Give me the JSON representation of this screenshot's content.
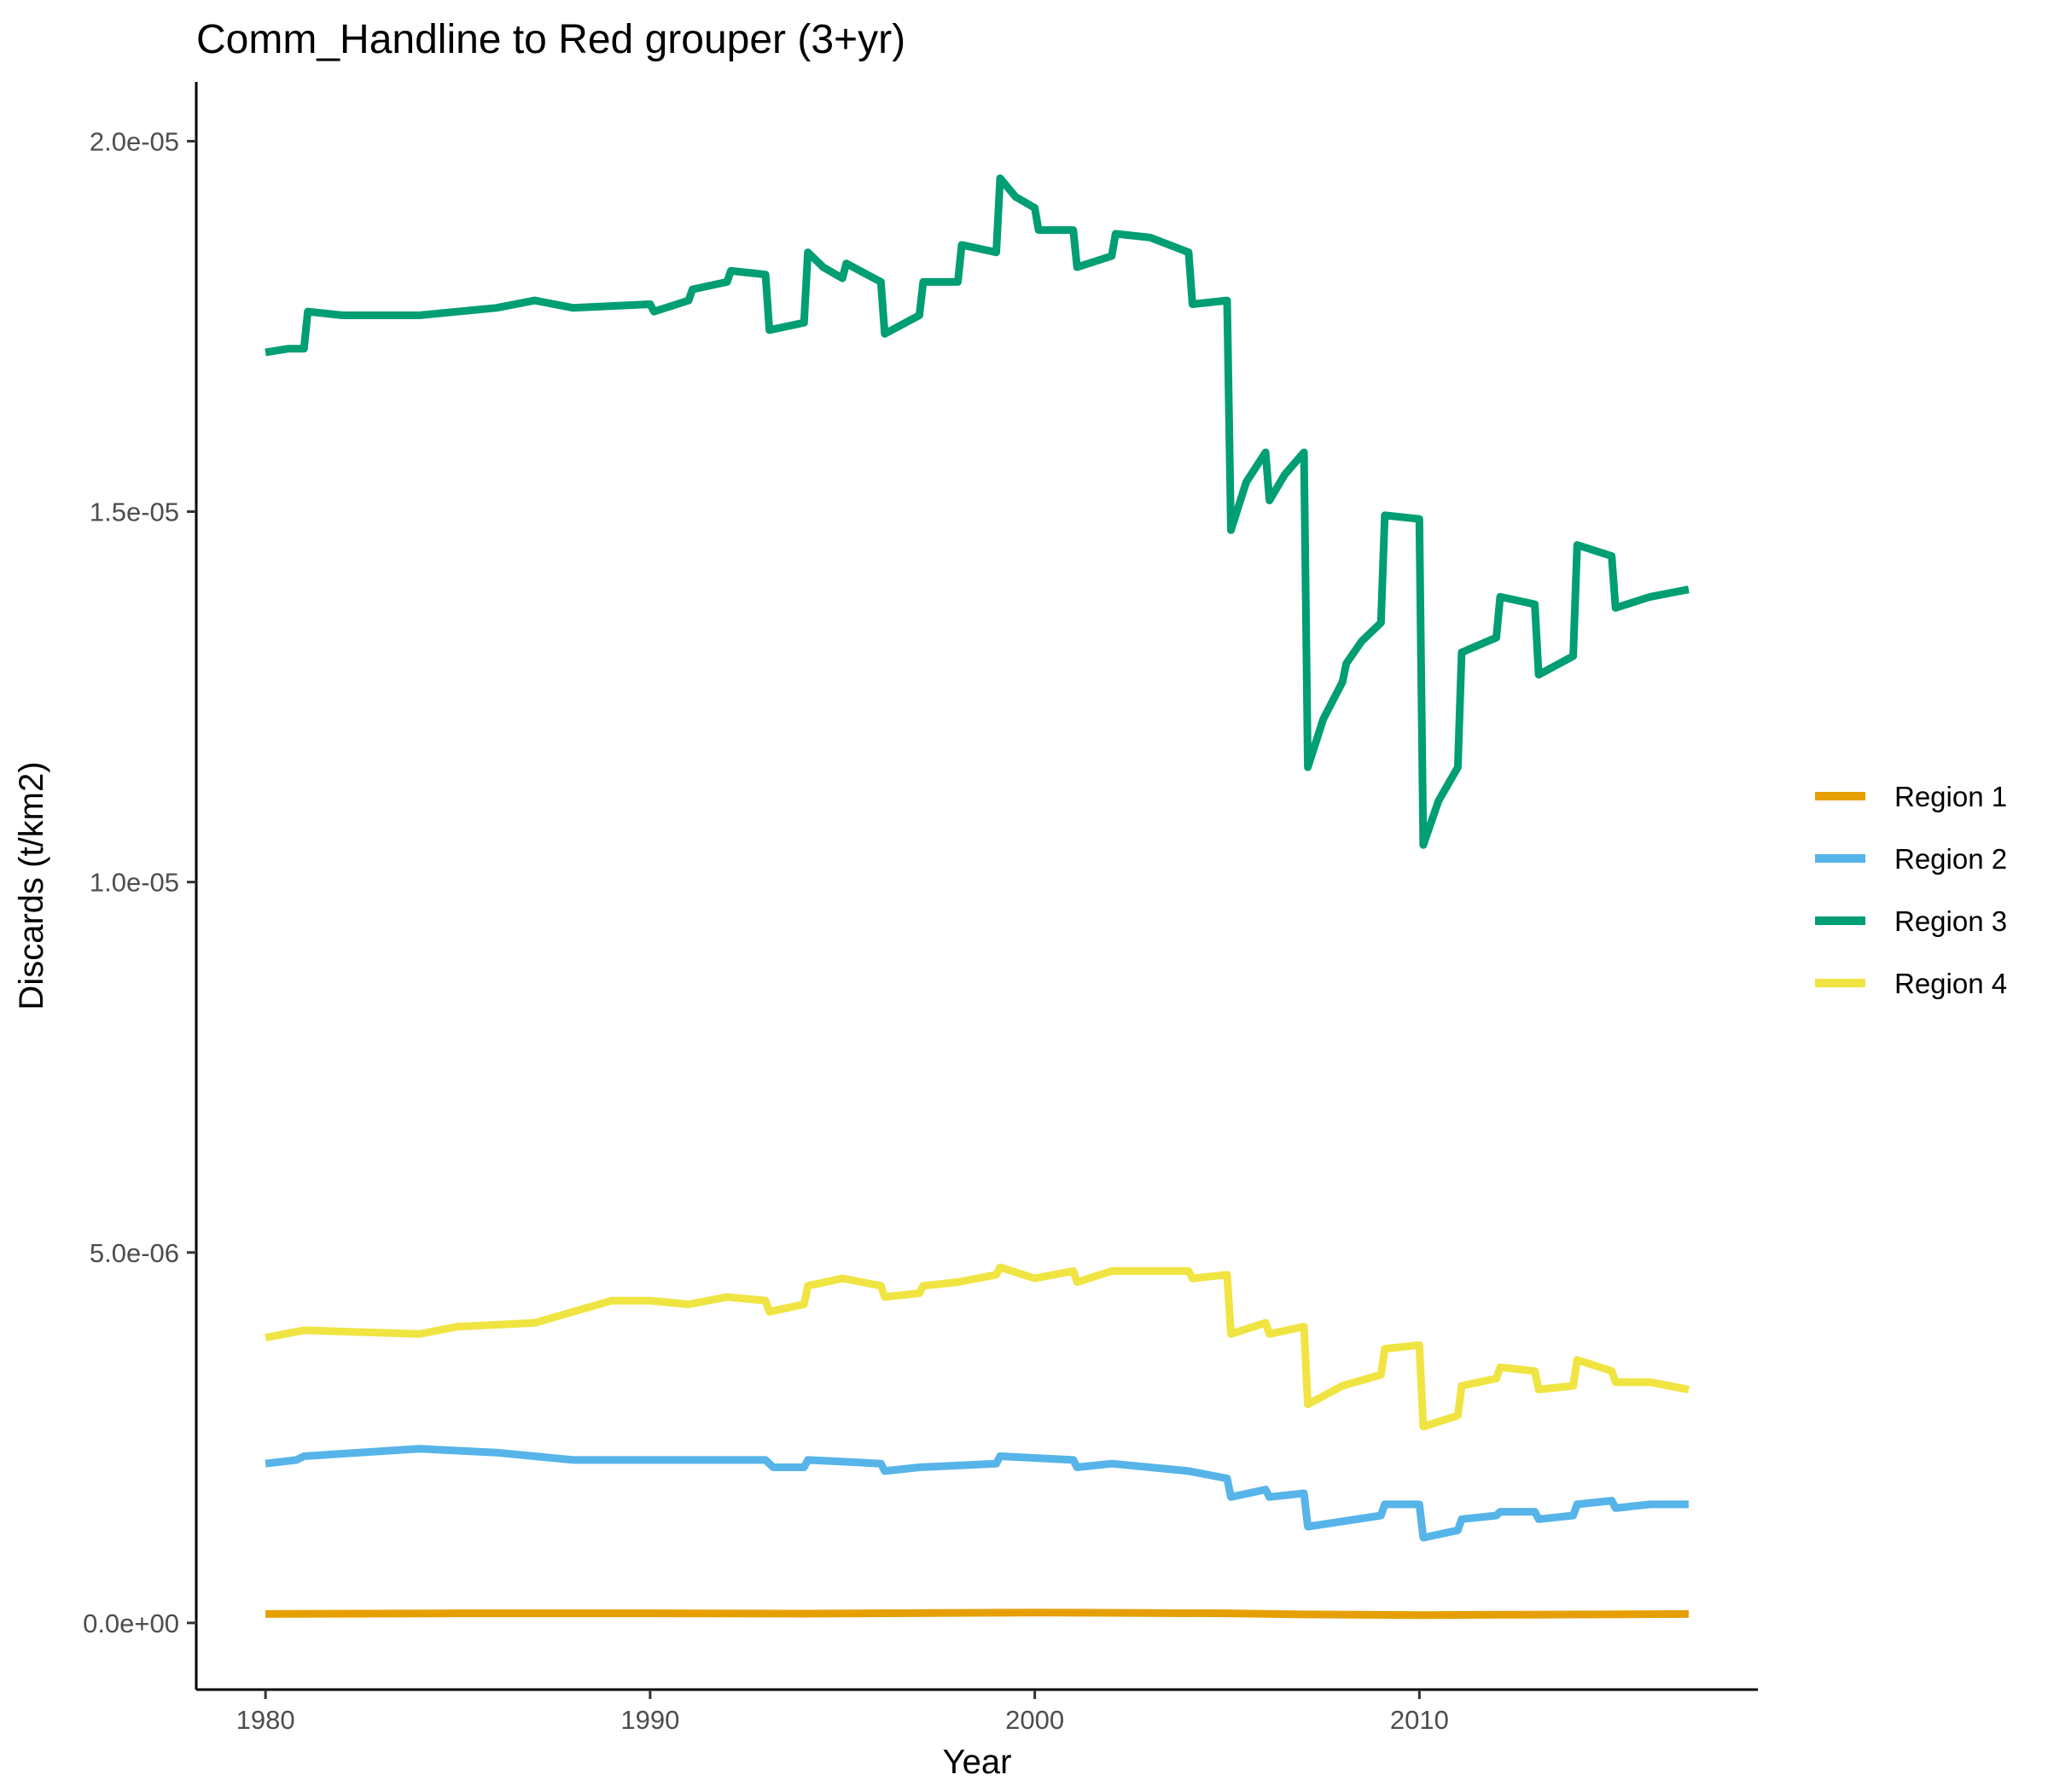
{
  "chart_data": {
    "type": "line",
    "title": "Comm_Handline to Red grouper (3+yr)",
    "xlabel": "Year",
    "ylabel": "Discards (t/km2)",
    "xlim": [
      1978.2,
      2018.8
    ],
    "ylim": [
      -9e-07,
      2.08e-05
    ],
    "x_ticks": [
      1980,
      1990,
      2000,
      2010
    ],
    "x_tick_labels": [
      "1980",
      "1990",
      "2000",
      "2010"
    ],
    "y_ticks": [
      0,
      5e-06,
      1e-05,
      1.5e-05,
      2e-05
    ],
    "y_tick_labels": [
      "0.0e+00",
      "5.0e-06",
      "1.0e-05",
      "1.5e-05",
      "2.0e-05"
    ],
    "grid": false,
    "legend_position": "right",
    "series": [
      {
        "name": "Region 1",
        "color": "#E69F00",
        "points": [
          [
            1980.0,
            1.2e-07
          ],
          [
            1985.0,
            1.3e-07
          ],
          [
            1990.0,
            1.3e-07
          ],
          [
            1994.0,
            1.25e-07
          ],
          [
            2000.0,
            1.4e-07
          ],
          [
            2005.0,
            1.3e-07
          ],
          [
            2007.0,
            1.15e-07
          ],
          [
            2010.0,
            1.05e-07
          ],
          [
            2012.0,
            1.1e-07
          ],
          [
            2017.0,
            1.2e-07
          ]
        ]
      },
      {
        "name": "Region 2",
        "color": "#56B4E9",
        "points": [
          [
            1980.0,
            2.15e-06
          ],
          [
            1980.8,
            2.2e-06
          ],
          [
            1981.0,
            2.25e-06
          ],
          [
            1984.0,
            2.35e-06
          ],
          [
            1986.0,
            2.3e-06
          ],
          [
            1988.0,
            2.2e-06
          ],
          [
            1990.0,
            2.2e-06
          ],
          [
            1993.0,
            2.2e-06
          ],
          [
            1993.2,
            2.1e-06
          ],
          [
            1994.0,
            2.1e-06
          ],
          [
            1994.1,
            2.2e-06
          ],
          [
            1996.0,
            2.15e-06
          ],
          [
            1996.1,
            2.05e-06
          ],
          [
            1997.0,
            2.1e-06
          ],
          [
            1999.0,
            2.15e-06
          ],
          [
            1999.1,
            2.25e-06
          ],
          [
            2001.0,
            2.2e-06
          ],
          [
            2001.1,
            2.1e-06
          ],
          [
            2002.0,
            2.15e-06
          ],
          [
            2004.0,
            2.05e-06
          ],
          [
            2005.0,
            1.95e-06
          ],
          [
            2005.1,
            1.7e-06
          ],
          [
            2006.0,
            1.8e-06
          ],
          [
            2006.1,
            1.7e-06
          ],
          [
            2007.0,
            1.75e-06
          ],
          [
            2007.1,
            1.3e-06
          ],
          [
            2009.0,
            1.45e-06
          ],
          [
            2009.1,
            1.6e-06
          ],
          [
            2010.0,
            1.6e-06
          ],
          [
            2010.1,
            1.15e-06
          ],
          [
            2011.0,
            1.25e-06
          ],
          [
            2011.1,
            1.4e-06
          ],
          [
            2012.0,
            1.45e-06
          ],
          [
            2012.1,
            1.5e-06
          ],
          [
            2013.0,
            1.5e-06
          ],
          [
            2013.1,
            1.4e-06
          ],
          [
            2014.0,
            1.45e-06
          ],
          [
            2014.1,
            1.6e-06
          ],
          [
            2015.0,
            1.65e-06
          ],
          [
            2015.1,
            1.55e-06
          ],
          [
            2016.0,
            1.6e-06
          ],
          [
            2017.0,
            1.6e-06
          ]
        ]
      },
      {
        "name": "Region 3",
        "color": "#009E73",
        "points": [
          [
            1980.0,
            1.715e-05
          ],
          [
            1980.6,
            1.72e-05
          ],
          [
            1981.0,
            1.72e-05
          ],
          [
            1981.1,
            1.77e-05
          ],
          [
            1982.0,
            1.765e-05
          ],
          [
            1984.0,
            1.765e-05
          ],
          [
            1986.0,
            1.775e-05
          ],
          [
            1987.0,
            1.785e-05
          ],
          [
            1988.0,
            1.775e-05
          ],
          [
            1990.0,
            1.78e-05
          ],
          [
            1990.1,
            1.77e-05
          ],
          [
            1991.0,
            1.785e-05
          ],
          [
            1991.1,
            1.8e-05
          ],
          [
            1992.0,
            1.81e-05
          ],
          [
            1992.1,
            1.825e-05
          ],
          [
            1993.0,
            1.82e-05
          ],
          [
            1993.1,
            1.745e-05
          ],
          [
            1994.0,
            1.755e-05
          ],
          [
            1994.1,
            1.85e-05
          ],
          [
            1994.5,
            1.83e-05
          ],
          [
            1995.0,
            1.815e-05
          ],
          [
            1995.1,
            1.835e-05
          ],
          [
            1996.0,
            1.81e-05
          ],
          [
            1996.1,
            1.74e-05
          ],
          [
            1997.0,
            1.765e-05
          ],
          [
            1997.1,
            1.81e-05
          ],
          [
            1998.0,
            1.81e-05
          ],
          [
            1998.1,
            1.86e-05
          ],
          [
            1999.0,
            1.85e-05
          ],
          [
            1999.1,
            1.95e-05
          ],
          [
            1999.5,
            1.925e-05
          ],
          [
            2000.0,
            1.91e-05
          ],
          [
            2000.1,
            1.88e-05
          ],
          [
            2001.0,
            1.88e-05
          ],
          [
            2001.1,
            1.83e-05
          ],
          [
            2002.0,
            1.845e-05
          ],
          [
            2002.1,
            1.875e-05
          ],
          [
            2003.0,
            1.87e-05
          ],
          [
            2004.0,
            1.85e-05
          ],
          [
            2004.1,
            1.78e-05
          ],
          [
            2005.0,
            1.785e-05
          ],
          [
            2005.1,
            1.475e-05
          ],
          [
            2005.5,
            1.54e-05
          ],
          [
            2006.0,
            1.58e-05
          ],
          [
            2006.1,
            1.515e-05
          ],
          [
            2006.5,
            1.55e-05
          ],
          [
            2007.0,
            1.58e-05
          ],
          [
            2007.1,
            1.155e-05
          ],
          [
            2007.5,
            1.22e-05
          ],
          [
            2008.0,
            1.27e-05
          ],
          [
            2008.1,
            1.295e-05
          ],
          [
            2008.5,
            1.325e-05
          ],
          [
            2009.0,
            1.35e-05
          ],
          [
            2009.1,
            1.495e-05
          ],
          [
            2010.0,
            1.49e-05
          ],
          [
            2010.1,
            1.05e-05
          ],
          [
            2010.5,
            1.11e-05
          ],
          [
            2011.0,
            1.155e-05
          ],
          [
            2011.1,
            1.31e-05
          ],
          [
            2012.0,
            1.33e-05
          ],
          [
            2012.1,
            1.385e-05
          ],
          [
            2013.0,
            1.375e-05
          ],
          [
            2013.1,
            1.28e-05
          ],
          [
            2014.0,
            1.305e-05
          ],
          [
            2014.1,
            1.455e-05
          ],
          [
            2015.0,
            1.44e-05
          ],
          [
            2015.1,
            1.37e-05
          ],
          [
            2016.0,
            1.385e-05
          ],
          [
            2017.0,
            1.395e-05
          ]
        ]
      },
      {
        "name": "Region 4",
        "color": "#F0E442",
        "points": [
          [
            1980.0,
            3.85e-06
          ],
          [
            1981.0,
            3.95e-06
          ],
          [
            1984.0,
            3.9e-06
          ],
          [
            1985.0,
            4e-06
          ],
          [
            1987.0,
            4.05e-06
          ],
          [
            1988.0,
            4.2e-06
          ],
          [
            1989.0,
            4.35e-06
          ],
          [
            1990.0,
            4.35e-06
          ],
          [
            1991.0,
            4.3e-06
          ],
          [
            1992.0,
            4.4e-06
          ],
          [
            1993.0,
            4.35e-06
          ],
          [
            1993.1,
            4.2e-06
          ],
          [
            1994.0,
            4.3e-06
          ],
          [
            1994.1,
            4.55e-06
          ],
          [
            1995.0,
            4.65e-06
          ],
          [
            1996.0,
            4.55e-06
          ],
          [
            1996.1,
            4.4e-06
          ],
          [
            1997.0,
            4.45e-06
          ],
          [
            1997.1,
            4.55e-06
          ],
          [
            1998.0,
            4.6e-06
          ],
          [
            1999.0,
            4.7e-06
          ],
          [
            1999.1,
            4.8e-06
          ],
          [
            2000.0,
            4.65e-06
          ],
          [
            2001.0,
            4.75e-06
          ],
          [
            2001.1,
            4.6e-06
          ],
          [
            2002.0,
            4.75e-06
          ],
          [
            2004.0,
            4.75e-06
          ],
          [
            2004.1,
            4.65e-06
          ],
          [
            2005.0,
            4.7e-06
          ],
          [
            2005.1,
            3.9e-06
          ],
          [
            2006.0,
            4.05e-06
          ],
          [
            2006.1,
            3.9e-06
          ],
          [
            2007.0,
            4e-06
          ],
          [
            2007.1,
            2.95e-06
          ],
          [
            2008.0,
            3.2e-06
          ],
          [
            2009.0,
            3.35e-06
          ],
          [
            2009.1,
            3.7e-06
          ],
          [
            2010.0,
            3.75e-06
          ],
          [
            2010.1,
            2.65e-06
          ],
          [
            2011.0,
            2.8e-06
          ],
          [
            2011.1,
            3.2e-06
          ],
          [
            2012.0,
            3.3e-06
          ],
          [
            2012.1,
            3.45e-06
          ],
          [
            2013.0,
            3.4e-06
          ],
          [
            2013.1,
            3.15e-06
          ],
          [
            2014.0,
            3.2e-06
          ],
          [
            2014.1,
            3.55e-06
          ],
          [
            2015.0,
            3.4e-06
          ],
          [
            2015.1,
            3.25e-06
          ],
          [
            2016.0,
            3.25e-06
          ],
          [
            2017.0,
            3.15e-06
          ]
        ]
      }
    ]
  }
}
